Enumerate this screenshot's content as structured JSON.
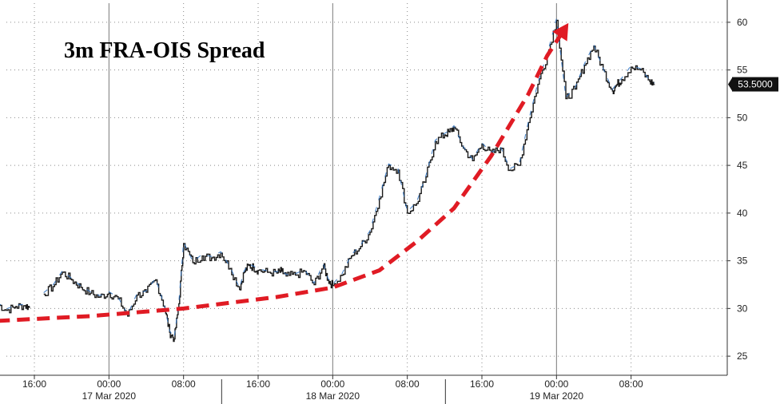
{
  "chart_data": {
    "type": "line",
    "title": "3m FRA-OIS Spread",
    "xlabel": "",
    "ylabel": "",
    "ylim": [
      23,
      62
    ],
    "y_ticks": [
      25,
      30,
      35,
      40,
      45,
      50,
      55,
      60
    ],
    "x_range_hours_from_16mar_1200": [
      0,
      71
    ],
    "time_ticks": [
      "16:00",
      "00:00",
      "08:00",
      "16:00",
      "00:00",
      "08:00",
      "16:00",
      "00:00",
      "08:00"
    ],
    "date_labels": [
      "17 Mar 2020",
      "18 Mar 2020",
      "19 Mar 2020"
    ],
    "last_value_label": "53.5000",
    "grid": true,
    "series": [
      {
        "values_x_hours": [
          0,
          1,
          2,
          3,
          3.5,
          5,
          6,
          7,
          8,
          9,
          10,
          11,
          12,
          13,
          14,
          15,
          16,
          17,
          18,
          18.5,
          19,
          19.5,
          20,
          21,
          22,
          23,
          24,
          25,
          26,
          26.5,
          27,
          27.5,
          28,
          29,
          30,
          30.5,
          31,
          32,
          33,
          34,
          35,
          35.5,
          36,
          37,
          38,
          39,
          40,
          41,
          42,
          43,
          44,
          45,
          46,
          47,
          48,
          48.5,
          49,
          50,
          51,
          52,
          53,
          54,
          55,
          56,
          57,
          58,
          59,
          60,
          61,
          62,
          63,
          64,
          65,
          66,
          66.5,
          67,
          68,
          69,
          70,
          70.5
        ],
        "values_y": [
          30.5,
          29.8,
          30.2,
          30.3,
          30.1,
          31.5,
          32.3,
          33.8,
          33.0,
          32.2,
          31.6,
          31.2,
          31.6,
          31.0,
          29.2,
          31.4,
          31.7,
          33.0,
          30.0,
          27.5,
          26.8,
          30.5,
          36.8,
          34.8,
          35.5,
          35.3,
          35.8,
          34.2,
          32.0,
          33.8,
          34.5,
          34.3,
          34.0,
          33.8,
          33.7,
          33.9,
          33.4,
          33.5,
          33.9,
          32.5,
          34.5,
          33.0,
          32.4,
          33.5,
          35.5,
          36.5,
          38.0,
          41.5,
          45.0,
          44.5,
          40.0,
          41.0,
          43.8,
          47.5,
          48.2,
          48.5,
          49.0,
          46.8,
          45.5,
          47.2,
          46.2,
          46.8,
          44.5,
          45.0,
          49.5,
          53.5,
          56.5,
          60.2,
          52.0,
          53.0,
          55.5,
          57.5,
          55.0,
          52.8,
          53.5,
          54.0,
          55.3,
          55.0,
          53.8,
          53.5
        ],
        "gaps_after_hours": [
          3.5,
          41.5,
          43.5,
          45.5
        ]
      }
    ],
    "annotation": {
      "type": "dashed-trend-arrow",
      "color": "#e01b24",
      "points_hours": [
        [
          0,
          28.7
        ],
        [
          10,
          29.2
        ],
        [
          20,
          30.0
        ],
        [
          30,
          31.2
        ],
        [
          36,
          32.2
        ],
        [
          41,
          34.0
        ],
        [
          45,
          37.0
        ],
        [
          49,
          40.5
        ],
        [
          53,
          46.0
        ],
        [
          57,
          52.5
        ],
        [
          59,
          56.5
        ],
        [
          61,
          59.5
        ]
      ]
    }
  },
  "colors": {
    "series_line": "#1a1a1a",
    "series_highlight": "#2a6ebd",
    "grid": "#8a8a8a",
    "annotation": "#e01b24",
    "last_value_bg": "#111111",
    "last_value_text": "#ffffff"
  }
}
